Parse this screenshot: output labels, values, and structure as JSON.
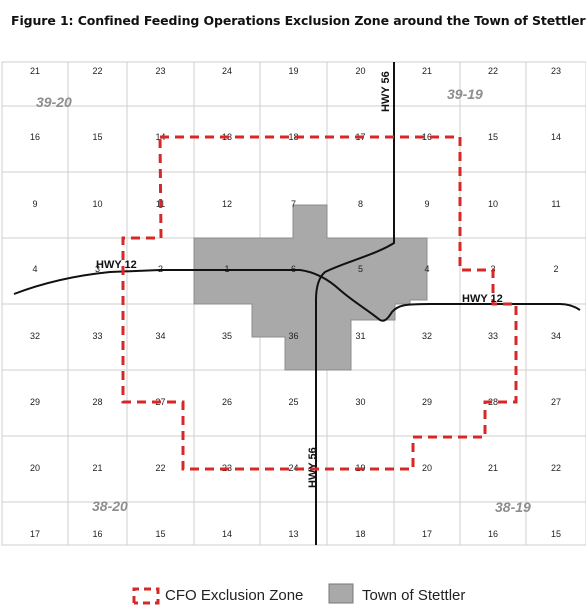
{
  "title": "Figure 1: Confined Feeding Operations Exclusion Zone around the Town of Stettler",
  "sections": [
    [
      "21",
      "22",
      "23",
      "24",
      "19",
      "20",
      "21",
      "22",
      "23"
    ],
    [
      "16",
      "15",
      "14",
      "13",
      "18",
      "17",
      "16",
      "15",
      "14"
    ],
    [
      "9",
      "10",
      "11",
      "12",
      "7",
      "8",
      "9",
      "10",
      "11"
    ],
    [
      "4",
      "3",
      "2",
      "1",
      "6",
      "5",
      "4",
      "3",
      "2"
    ],
    [
      "32",
      "33",
      "34",
      "35",
      "36",
      "31",
      "32",
      "33",
      "34"
    ],
    [
      "29",
      "28",
      "27",
      "26",
      "25",
      "30",
      "29",
      "28",
      "27"
    ],
    [
      "20",
      "21",
      "22",
      "23",
      "24",
      "19",
      "20",
      "21",
      "22"
    ],
    [
      "17",
      "16",
      "15",
      "14",
      "13",
      "18",
      "17",
      "16",
      "15"
    ]
  ],
  "townships": {
    "nw": "39-20",
    "ne": "39-19",
    "sw": "38-20",
    "se": "38-19"
  },
  "highways": {
    "hwy56_north": "HWY 56",
    "hwy56_south": "HWY 56",
    "hwy12_west": "HWY 12",
    "hwy12_east": "HWY 12"
  },
  "legend": {
    "exclusion_label": "CFO Exclusion Zone",
    "town_label": "Town of Stettler"
  },
  "colors": {
    "exclusion_zone": "#d62828",
    "town_fill": "#a9a9a9",
    "grid": "#cfcfcf",
    "road": "#111111"
  }
}
